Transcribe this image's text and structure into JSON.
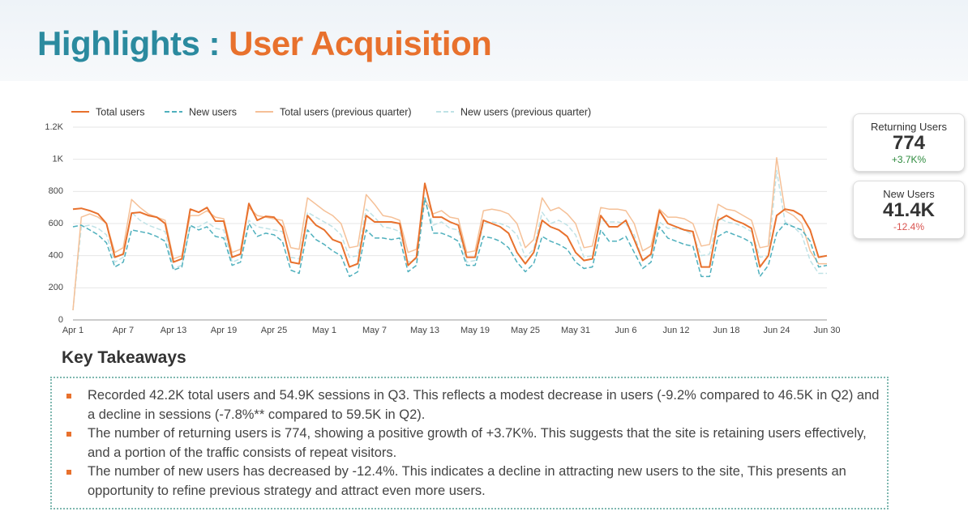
{
  "header": {
    "title_prefix": "Highlights :",
    "title_main": "User Acquisition"
  },
  "chart_data": {
    "type": "line",
    "categories": [
      "Apr 1",
      null,
      null,
      null,
      null,
      null,
      "Apr 7",
      null,
      null,
      null,
      null,
      null,
      "Apr 13",
      null,
      null,
      null,
      null,
      null,
      "Apr 19",
      null,
      null,
      null,
      null,
      null,
      "Apr 25",
      null,
      null,
      null,
      null,
      null,
      "May 1",
      null,
      null,
      null,
      null,
      null,
      "May 7",
      null,
      null,
      null,
      null,
      null,
      "May 13",
      null,
      null,
      null,
      null,
      null,
      "May 19",
      null,
      null,
      null,
      null,
      null,
      "May 25",
      null,
      null,
      null,
      null,
      null,
      "May 31",
      null,
      null,
      null,
      null,
      null,
      "Jun 6",
      null,
      null,
      null,
      null,
      null,
      "Jun 12",
      null,
      null,
      null,
      null,
      null,
      "Jun 18",
      null,
      null,
      null,
      null,
      null,
      "Jun 24",
      null,
      null,
      null,
      null,
      null,
      "Jun 30"
    ],
    "series": [
      {
        "name": "Total users",
        "color": "#e8712d",
        "values": [
          690,
          695,
          680,
          660,
          600,
          390,
          410,
          665,
          670,
          650,
          640,
          600,
          360,
          380,
          690,
          670,
          700,
          615,
          615,
          390,
          410,
          725,
          620,
          645,
          640,
          580,
          360,
          350,
          650,
          590,
          560,
          500,
          480,
          330,
          350,
          650,
          610,
          610,
          610,
          600,
          340,
          390,
          850,
          640,
          640,
          610,
          590,
          390,
          390,
          620,
          600,
          580,
          540,
          420,
          350,
          420,
          620,
          580,
          560,
          520,
          420,
          370,
          380,
          650,
          580,
          580,
          620,
          500,
          370,
          410,
          680,
          600,
          580,
          560,
          550,
          330,
          330,
          620,
          650,
          620,
          600,
          570,
          330,
          400,
          650,
          690,
          680,
          650,
          560,
          390,
          400
        ]
      },
      {
        "name": "New users",
        "color": "#4fb0bd",
        "values": [
          580,
          590,
          560,
          530,
          480,
          330,
          360,
          560,
          550,
          540,
          520,
          490,
          310,
          330,
          590,
          560,
          580,
          520,
          510,
          340,
          360,
          600,
          520,
          540,
          530,
          490,
          310,
          290,
          560,
          500,
          470,
          430,
          400,
          270,
          300,
          560,
          510,
          510,
          500,
          510,
          300,
          340,
          760,
          540,
          540,
          520,
          490,
          340,
          340,
          520,
          510,
          490,
          450,
          360,
          300,
          350,
          520,
          490,
          470,
          440,
          360,
          320,
          330,
          560,
          490,
          490,
          520,
          420,
          320,
          360,
          580,
          510,
          490,
          470,
          460,
          270,
          270,
          520,
          550,
          530,
          510,
          480,
          270,
          340,
          540,
          600,
          580,
          560,
          490,
          330,
          340
        ]
      },
      {
        "name": "Total users (previous quarter)",
        "color": "#f5c097",
        "values": [
          60,
          640,
          660,
          640,
          600,
          420,
          450,
          750,
          700,
          660,
          640,
          620,
          380,
          400,
          650,
          650,
          680,
          640,
          630,
          420,
          440,
          700,
          650,
          640,
          630,
          620,
          450,
          440,
          760,
          720,
          680,
          650,
          600,
          450,
          460,
          780,
          720,
          650,
          640,
          620,
          420,
          440,
          750,
          660,
          680,
          640,
          630,
          420,
          430,
          680,
          690,
          680,
          660,
          600,
          450,
          500,
          760,
          680,
          700,
          660,
          600,
          450,
          460,
          700,
          690,
          690,
          680,
          600,
          430,
          460,
          690,
          640,
          640,
          630,
          600,
          460,
          470,
          720,
          690,
          680,
          650,
          620,
          450,
          460,
          1010,
          680,
          650,
          600,
          430,
          350,
          350
        ]
      },
      {
        "name": "New users (previous quarter)",
        "color": "#bfe2e6",
        "values": [
          60,
          580,
          590,
          570,
          530,
          360,
          390,
          670,
          620,
          590,
          570,
          550,
          320,
          340,
          580,
          580,
          610,
          570,
          560,
          360,
          380,
          620,
          580,
          570,
          560,
          550,
          390,
          380,
          670,
          640,
          610,
          580,
          530,
          390,
          400,
          690,
          640,
          580,
          570,
          550,
          360,
          380,
          740,
          590,
          610,
          570,
          560,
          360,
          370,
          600,
          610,
          600,
          580,
          530,
          390,
          440,
          670,
          600,
          620,
          590,
          530,
          390,
          400,
          620,
          610,
          610,
          600,
          530,
          370,
          400,
          610,
          570,
          570,
          560,
          530,
          400,
          410,
          640,
          610,
          600,
          580,
          550,
          390,
          400,
          930,
          610,
          580,
          530,
          370,
          290,
          290
        ]
      }
    ],
    "ylim": [
      0,
      1200
    ],
    "yticks": [
      0,
      200,
      400,
      600,
      800,
      {
        "value": 1000,
        "label": "1K"
      },
      {
        "value": 1200,
        "label": "1.2K"
      }
    ],
    "grid": true
  },
  "kpis": [
    {
      "label": "Returning Users",
      "value": "774",
      "change": "+3.7K%"
    },
    {
      "label": "New Users",
      "value": "41.4K",
      "change": "-12.4%"
    }
  ],
  "takeaways": {
    "title": "Key Takeaways",
    "items": [
      "Recorded 42.2K total users and 54.9K sessions in Q3. This reflects a modest decrease in users (-9.2% compared to 46.5K in Q2) and a decline in sessions (-7.8%** compared to 59.5K in Q2).",
      "The number of returning users is 774, showing a positive growth of +3.7K%. This suggests that the site is retaining users effectively, and a portion of the traffic consists of repeat visitors.",
      "The number of new users has decreased by -12.4%. This indicates a decline in attracting new users to the site, This presents an opportunity to refine previous strategy and attract even more users."
    ]
  }
}
